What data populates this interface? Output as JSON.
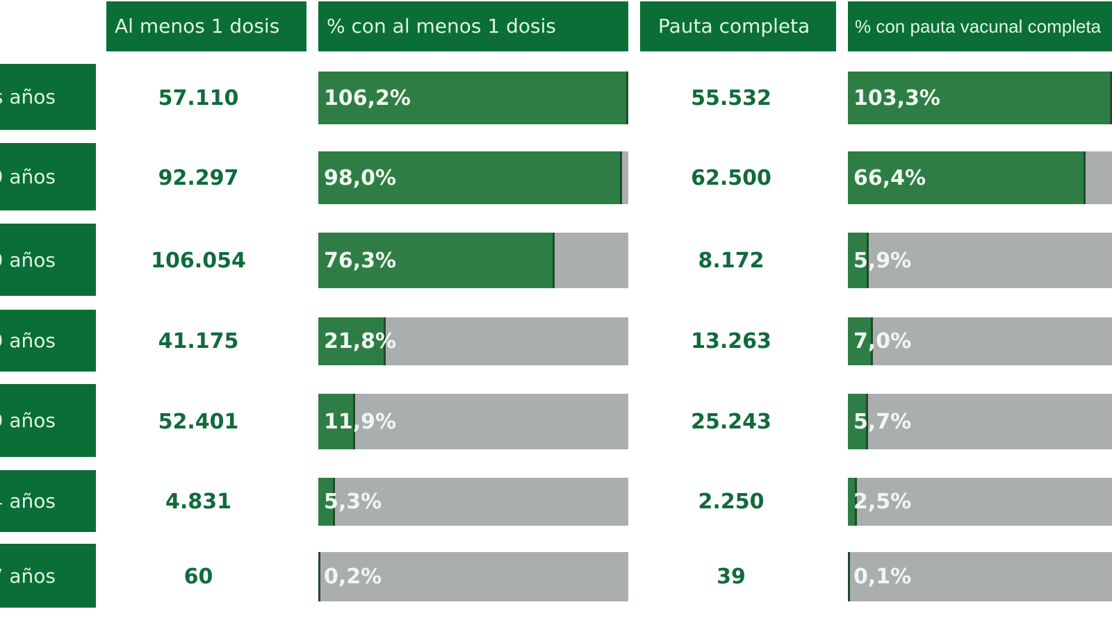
{
  "headers": {
    "dose1": "Al menos 1 dosis",
    "pct_dose1": "% con al menos 1 dosis",
    "complete": "Pauta completa",
    "pct_complete": "% con pauta vacunal completa"
  },
  "rows": [
    {
      "label": "s años",
      "dose1": "57.110",
      "pct_dose1": "106,2%",
      "pct_dose1_value": 106.2,
      "complete": "55.532",
      "pct_complete": "103,3%",
      "pct_complete_value": 103.3
    },
    {
      "label": "9 años",
      "dose1": "92.297",
      "pct_dose1": "98,0%",
      "pct_dose1_value": 98.0,
      "complete": "62.500",
      "pct_complete": "66,4%",
      "pct_complete_value": 66.4
    },
    {
      "label": "9 años",
      "dose1": "106.054",
      "pct_dose1": "76,3%",
      "pct_dose1_value": 76.3,
      "complete": "8.172",
      "pct_complete": "5,9%",
      "pct_complete_value": 5.9
    },
    {
      "label": "9 años",
      "dose1": "41.175",
      "pct_dose1": "21,8%",
      "pct_dose1_value": 21.8,
      "complete": "13.263",
      "pct_complete": "7,0%",
      "pct_complete_value": 7.0
    },
    {
      "label": "9 años",
      "dose1": "52.401",
      "pct_dose1": "11,9%",
      "pct_dose1_value": 11.9,
      "complete": "25.243",
      "pct_complete": "5,7%",
      "pct_complete_value": 5.7
    },
    {
      "label": "4 años",
      "dose1": "4.831",
      "pct_dose1": "5,3%",
      "pct_dose1_value": 5.3,
      "complete": "2.250",
      "pct_complete": "2,5%",
      "pct_complete_value": 2.5
    },
    {
      "label": "7 años",
      "dose1": "60",
      "pct_dose1": "0,2%",
      "pct_dose1_value": 0.2,
      "complete": "39",
      "pct_complete": "0,1%",
      "pct_complete_value": 0.1
    }
  ],
  "colors": {
    "header": "#0a6e36",
    "fill": "#2e7d45",
    "track": "#abaeae",
    "number_text": "#106b3b"
  }
}
